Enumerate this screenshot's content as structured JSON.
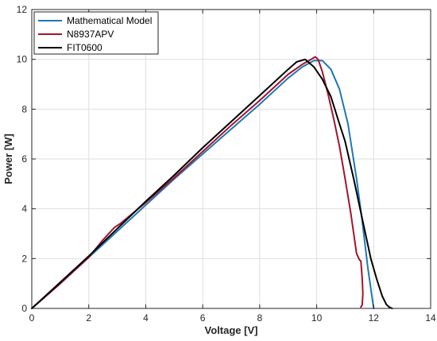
{
  "chart_data": {
    "type": "line",
    "xlabel": "Voltage [V]",
    "ylabel": "Power [W]",
    "xlim": [
      0,
      14
    ],
    "ylim": [
      0,
      12
    ],
    "xticks": [
      "0",
      "2",
      "4",
      "6",
      "8",
      "10",
      "12",
      "14"
    ],
    "yticks": [
      "0",
      "2",
      "4",
      "6",
      "8",
      "10",
      "12"
    ],
    "grid": true,
    "legend_position": "top-left",
    "series": [
      {
        "name": "Mathematical Model",
        "color": "#1f77b4",
        "x": [
          0,
          1,
          2,
          3,
          4,
          5,
          6,
          7,
          8,
          9,
          9.5,
          9.9,
          10.2,
          10.5,
          10.8,
          11.1,
          11.4,
          11.6,
          11.8,
          12.0
        ],
        "y": [
          0,
          1.0,
          2.05,
          3.1,
          4.15,
          5.2,
          6.2,
          7.2,
          8.2,
          9.25,
          9.7,
          9.95,
          9.95,
          9.6,
          8.8,
          7.4,
          5.2,
          3.5,
          1.6,
          0.0
        ]
      },
      {
        "name": "N8937APV",
        "color": "#a2142f",
        "x": [
          0,
          1,
          2,
          2.5,
          2.9,
          3.1,
          4,
          5,
          6,
          7,
          8,
          9,
          9.5,
          9.8,
          9.95,
          10.05,
          10.2,
          10.4,
          10.6,
          10.8,
          11.0,
          11.2,
          11.4,
          11.5,
          11.55,
          11.6,
          11.62,
          11.6,
          11.55
        ],
        "y": [
          0,
          1.0,
          2.05,
          2.75,
          3.25,
          3.4,
          4.25,
          5.25,
          6.3,
          7.35,
          8.35,
          9.4,
          9.8,
          10.0,
          10.1,
          10.0,
          9.5,
          8.6,
          7.6,
          6.5,
          5.2,
          3.8,
          2.2,
          1.95,
          1.9,
          1.2,
          0.6,
          0.15,
          0.05
        ]
      },
      {
        "name": "FIT0600",
        "color": "#000000",
        "x": [
          0,
          1,
          2,
          3,
          4,
          5,
          6,
          7,
          8,
          9,
          9.3,
          9.6,
          9.9,
          10.2,
          10.5,
          10.8,
          11.0,
          11.3,
          11.6,
          11.9,
          12.1,
          12.3,
          12.45,
          12.55,
          12.65
        ],
        "y": [
          0,
          1.05,
          2.1,
          3.2,
          4.3,
          5.35,
          6.45,
          7.5,
          8.55,
          9.6,
          9.9,
          10.0,
          9.7,
          9.2,
          8.5,
          7.4,
          6.7,
          5.2,
          3.6,
          2.0,
          1.2,
          0.5,
          0.15,
          0.05,
          0.0
        ]
      }
    ]
  }
}
